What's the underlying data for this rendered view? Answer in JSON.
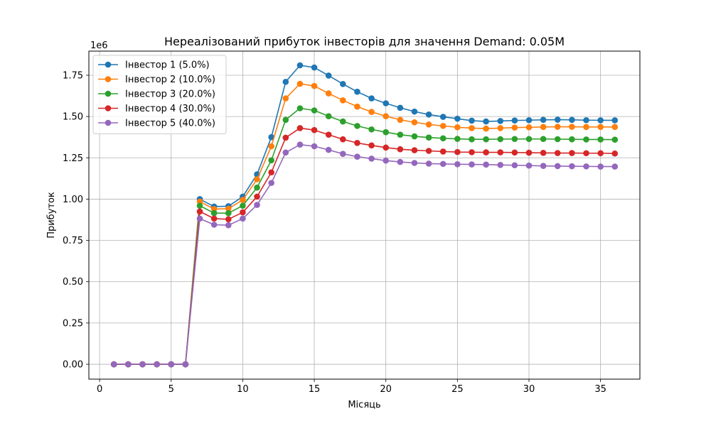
{
  "chart_data": {
    "type": "line",
    "title": "Нереалізований прибуток інвесторів для значення Demand: 0.05M",
    "xlabel": "Місяць",
    "ylabel": "Прибуток",
    "y_multiplier_label": "1e6",
    "xlim": [
      -0.75,
      37.75
    ],
    "ylim": [
      -90000,
      1896000
    ],
    "xticks": [
      0,
      5,
      10,
      15,
      20,
      25,
      30,
      35
    ],
    "yticks": [
      0,
      250000,
      500000,
      750000,
      1000000,
      1250000,
      1500000,
      1750000
    ],
    "ytick_labels": [
      "0.00",
      "0.25",
      "0.50",
      "0.75",
      "1.00",
      "1.25",
      "1.50",
      "1.75"
    ],
    "grid": true,
    "legend_position": "upper-left",
    "marker": "circle",
    "x": [
      1,
      2,
      3,
      4,
      5,
      6,
      7,
      8,
      9,
      10,
      11,
      12,
      13,
      14,
      15,
      16,
      17,
      18,
      19,
      20,
      21,
      22,
      23,
      24,
      25,
      26,
      27,
      28,
      29,
      30,
      31,
      32,
      33,
      34,
      35,
      36
    ],
    "series": [
      {
        "name": "Інвестор 1 (5.0%)",
        "color": "#1f77b4",
        "values": [
          0,
          0,
          0,
          0,
          0,
          0,
          1000000,
          955000,
          957000,
          1015000,
          1150000,
          1375000,
          1710000,
          1810000,
          1797000,
          1748000,
          1697000,
          1650000,
          1610000,
          1580000,
          1553000,
          1530000,
          1512000,
          1498000,
          1487000,
          1475000,
          1470000,
          1473000,
          1476000,
          1478000,
          1480000,
          1481000,
          1480000,
          1478000,
          1477000,
          1477000
        ]
      },
      {
        "name": "Інвестор 2 (10.0%)",
        "color": "#ff7f0e",
        "values": [
          0,
          0,
          0,
          0,
          0,
          0,
          985000,
          940000,
          942000,
          995000,
          1120000,
          1320000,
          1610000,
          1698000,
          1685000,
          1640000,
          1598000,
          1560000,
          1528000,
          1502000,
          1480000,
          1465000,
          1452000,
          1443000,
          1435000,
          1430000,
          1427000,
          1430000,
          1433000,
          1435000,
          1437000,
          1438000,
          1438000,
          1437000,
          1437000,
          1437000
        ]
      },
      {
        "name": "Інвестор 3 (20.0%)",
        "color": "#2ca02c",
        "values": [
          0,
          0,
          0,
          0,
          0,
          0,
          960000,
          915000,
          915000,
          960000,
          1070000,
          1235000,
          1480000,
          1550000,
          1537000,
          1502000,
          1470000,
          1443000,
          1422000,
          1405000,
          1390000,
          1380000,
          1373000,
          1368000,
          1365000,
          1362000,
          1362000,
          1363000,
          1364000,
          1364000,
          1364000,
          1363000,
          1362000,
          1361000,
          1361000,
          1360000
        ]
      },
      {
        "name": "Інвестор 4 (30.0%)",
        "color": "#d62728",
        "values": [
          0,
          0,
          0,
          0,
          0,
          0,
          925000,
          882000,
          878000,
          920000,
          1015000,
          1162000,
          1372000,
          1430000,
          1418000,
          1390000,
          1362000,
          1340000,
          1325000,
          1312000,
          1302000,
          1296000,
          1292000,
          1288000,
          1285000,
          1284000,
          1283000,
          1283000,
          1282000,
          1281000,
          1280000,
          1279000,
          1279000,
          1278000,
          1278000,
          1276000
        ]
      },
      {
        "name": "Інвестор 5 (40.0%)",
        "color": "#9467bd",
        "values": [
          0,
          0,
          0,
          0,
          0,
          0,
          882000,
          845000,
          842000,
          882000,
          965000,
          1098000,
          1282000,
          1330000,
          1320000,
          1298000,
          1274000,
          1257000,
          1245000,
          1233000,
          1225000,
          1219000,
          1215000,
          1213000,
          1211000,
          1210000,
          1209000,
          1207000,
          1205000,
          1203000,
          1201000,
          1200000,
          1199000,
          1198000,
          1197000,
          1197000
        ]
      }
    ]
  }
}
